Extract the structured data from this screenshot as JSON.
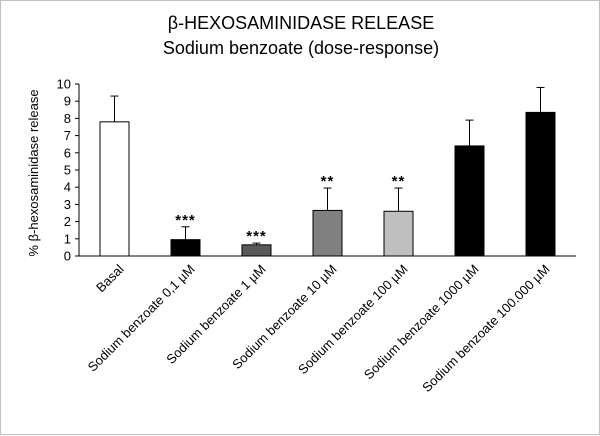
{
  "chart_data": {
    "type": "bar",
    "title": "β-HEXOSAMINIDASE RELEASE",
    "subtitle": "Sodium benzoate (dose-response)",
    "xlabel": "",
    "ylabel": "% β-hexosaminidase release",
    "ylim": [
      0,
      10
    ],
    "yticks": [
      "0",
      "1",
      "2",
      "3",
      "4",
      "5",
      "6",
      "7",
      "8",
      "9",
      "10"
    ],
    "grid": false,
    "legend": "none",
    "categories": [
      "Basal",
      "Sodium benzoate 0,1 µM",
      "Sodium benzoate 1 µM",
      "Sodium benzoate 10 µM",
      "Sodium benzoate 100 µM",
      "Sodium benzoate 1000 µM",
      "Sodium benzoate 100.000 µM"
    ],
    "values": [
      7.8,
      0.95,
      0.65,
      2.65,
      2.6,
      6.4,
      8.35
    ],
    "errors": [
      1.5,
      0.75,
      0.1,
      1.3,
      1.35,
      1.5,
      1.45
    ],
    "significance": [
      "",
      "***",
      "***",
      "**",
      "**",
      "",
      ""
    ],
    "bar_colors": [
      "#ffffff",
      "#000000",
      "#595959",
      "#808080",
      "#bfbfbf",
      "#000000",
      "#000000"
    ]
  }
}
